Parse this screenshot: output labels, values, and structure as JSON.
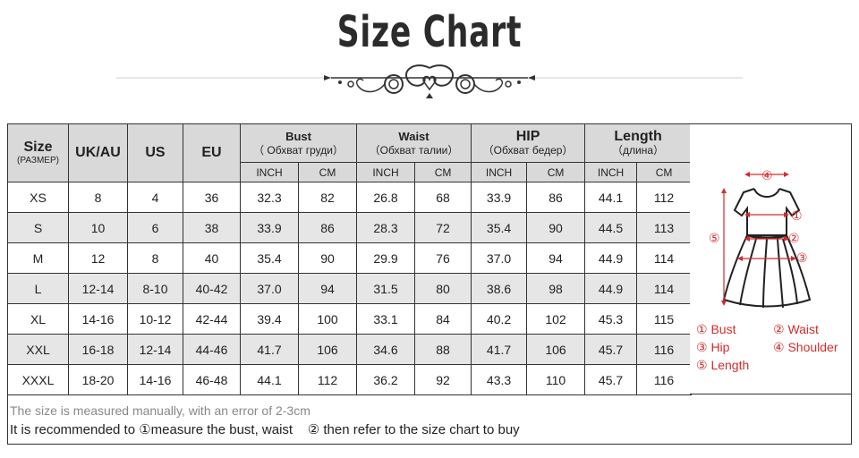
{
  "title": "Size Chart",
  "header": {
    "size": "Size",
    "size_sub": "(РАЗМЕР)",
    "ukau": "UK/AU",
    "us": "US",
    "eu": "EU",
    "bust": "Bust",
    "bust_sub": "（ Обхват груди）",
    "waist": "Waist",
    "waist_sub": "（Обхват талии）",
    "hip": "HIP",
    "hip_sub": "（Обхват бедер）",
    "length": "Length",
    "length_sub": "（длина）",
    "inch": "INCH",
    "cm": "CM"
  },
  "rows": [
    [
      "XS",
      "8",
      "4",
      "36",
      "32.3",
      "82",
      "26.8",
      "68",
      "33.9",
      "86",
      "44.1",
      "112"
    ],
    [
      "S",
      "10",
      "6",
      "38",
      "33.9",
      "86",
      "28.3",
      "72",
      "35.4",
      "90",
      "44.5",
      "113"
    ],
    [
      "M",
      "12",
      "8",
      "40",
      "35.4",
      "90",
      "29.9",
      "76",
      "37.0",
      "94",
      "44.9",
      "114"
    ],
    [
      "L",
      "12-14",
      "8-10",
      "40-42",
      "37.0",
      "94",
      "31.5",
      "80",
      "38.6",
      "98",
      "44.9",
      "114"
    ],
    [
      "XL",
      "14-16",
      "10-12",
      "42-44",
      "39.4",
      "100",
      "33.1",
      "84",
      "40.2",
      "102",
      "45.3",
      "115"
    ],
    [
      "XXL",
      "16-18",
      "12-14",
      "44-46",
      "41.7",
      "106",
      "34.6",
      "88",
      "41.7",
      "106",
      "45.7",
      "116"
    ],
    [
      "XXXL",
      "18-20",
      "14-16",
      "46-48",
      "44.1",
      "112",
      "36.2",
      "92",
      "43.3",
      "110",
      "45.7",
      "116"
    ]
  ],
  "diagram": {
    "markers": [
      "①",
      "②",
      "③",
      "④",
      "⑤"
    ],
    "legend": {
      "bust": "① Bust",
      "waist": "② Waist",
      "hip": "③ Hip",
      "shoulder": "④ Shoulder",
      "length": "⑤ Length"
    },
    "accent_color": "#d52b2b"
  },
  "notes": {
    "line1": "The size is measured manually, with an error of 2-3cm",
    "line2": "It is recommended to ①measure the bust, waist    ② then refer to the size chart to buy"
  }
}
